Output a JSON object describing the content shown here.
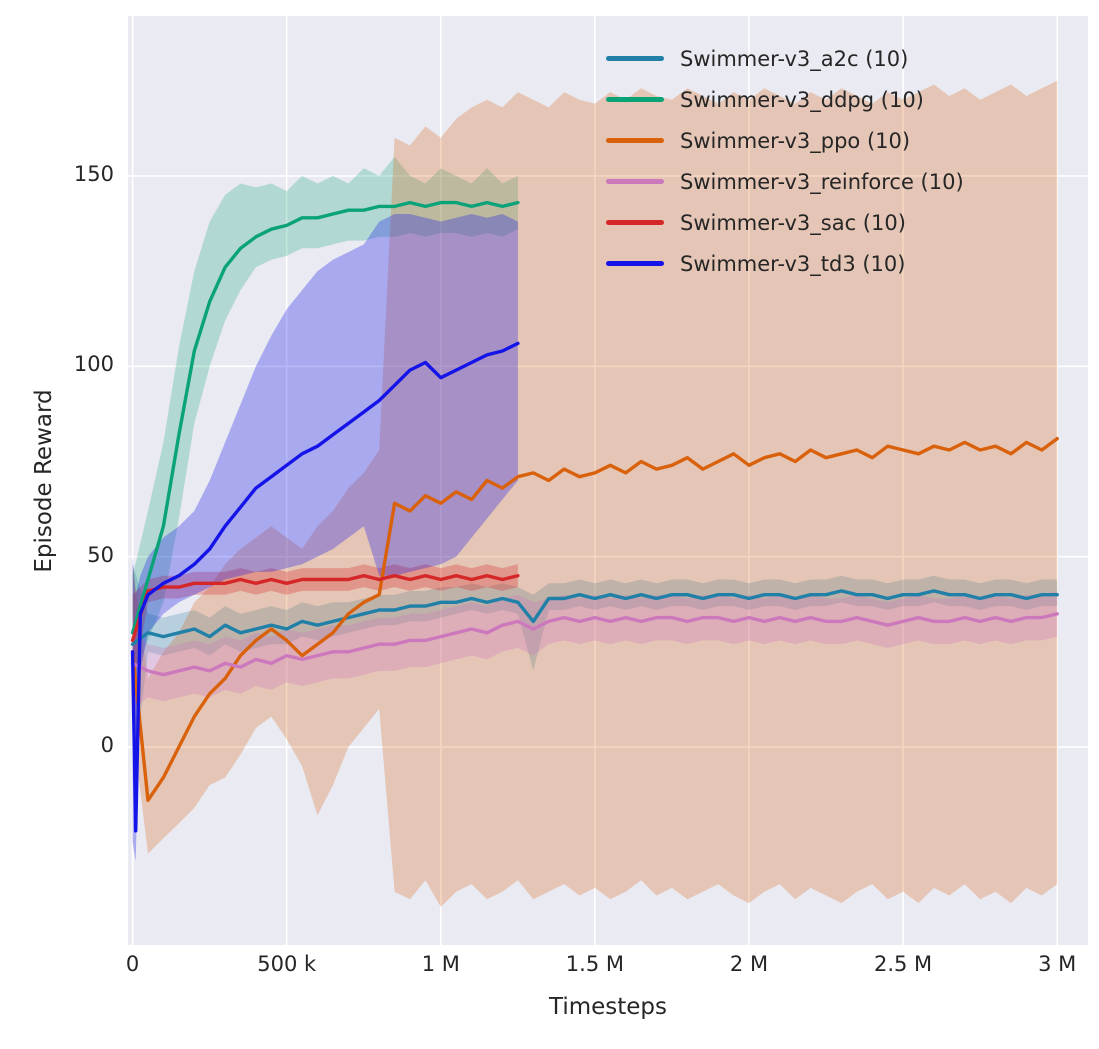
{
  "chart_data": {
    "type": "line",
    "title": "",
    "xlabel": "Timesteps",
    "ylabel": "Episode Reward",
    "x_unit": "thousand timesteps",
    "grid": true,
    "legend_position": "upper right",
    "background": "#eaeaf2",
    "grid_color": "#ffffff",
    "xlim": [
      -15,
      3100
    ],
    "ylim": [
      -52,
      192
    ],
    "x_ticks": [
      {
        "v": 0,
        "label": "0"
      },
      {
        "v": 500,
        "label": "500 k"
      },
      {
        "v": 1000,
        "label": "1 M"
      },
      {
        "v": 1500,
        "label": "1.5 M"
      },
      {
        "v": 2000,
        "label": "2 M"
      },
      {
        "v": 2500,
        "label": "2.5 M"
      },
      {
        "v": 3000,
        "label": "3 M"
      }
    ],
    "y_ticks": [
      {
        "v": 0,
        "label": "0"
      },
      {
        "v": 50,
        "label": "50"
      },
      {
        "v": 100,
        "label": "100"
      },
      {
        "v": 150,
        "label": "150"
      }
    ],
    "x_long": [
      0,
      50,
      100,
      150,
      200,
      250,
      300,
      350,
      400,
      450,
      500,
      550,
      600,
      650,
      700,
      750,
      800,
      850,
      900,
      950,
      1000,
      1050,
      1100,
      1150,
      1200,
      1250,
      1300,
      1350,
      1400,
      1450,
      1500,
      1550,
      1600,
      1650,
      1700,
      1750,
      1800,
      1850,
      1900,
      1950,
      2000,
      2050,
      2100,
      2150,
      2200,
      2250,
      2300,
      2350,
      2400,
      2450,
      2500,
      2550,
      2600,
      2650,
      2700,
      2750,
      2800,
      2850,
      2900,
      2950,
      3000
    ],
    "x_short": [
      0,
      50,
      100,
      150,
      200,
      250,
      300,
      350,
      400,
      450,
      500,
      550,
      600,
      650,
      700,
      750,
      800,
      850,
      900,
      950,
      1000,
      1050,
      1100,
      1150,
      1200,
      1250
    ],
    "series": [
      {
        "name": "Swimmer-v3_a2c (10)",
        "color": "#2080a8",
        "band_alpha": 0.25,
        "x_key": "x_long",
        "y": [
          27,
          30,
          29,
          30,
          31,
          29,
          32,
          30,
          31,
          32,
          31,
          33,
          32,
          33,
          34,
          35,
          36,
          36,
          37,
          37,
          38,
          38,
          39,
          38,
          39,
          38,
          33,
          39,
          39,
          40,
          39,
          40,
          39,
          40,
          39,
          40,
          40,
          39,
          40,
          40,
          39,
          40,
          40,
          39,
          40,
          40,
          41,
          40,
          40,
          39,
          40,
          40,
          41,
          40,
          40,
          39,
          40,
          40,
          39,
          40,
          40
        ],
        "lo": [
          -10,
          25,
          24,
          25,
          26,
          24,
          27,
          25,
          26,
          27,
          27,
          29,
          28,
          29,
          30,
          31,
          32,
          32,
          33,
          33,
          34,
          35,
          36,
          35,
          36,
          35,
          20,
          36,
          36,
          37,
          36,
          37,
          36,
          37,
          36,
          37,
          37,
          36,
          37,
          37,
          36,
          37,
          37,
          36,
          37,
          37,
          38,
          37,
          37,
          36,
          37,
          37,
          38,
          37,
          37,
          36,
          37,
          37,
          36,
          37,
          37
        ],
        "hi": [
          48,
          35,
          34,
          35,
          36,
          34,
          37,
          35,
          36,
          37,
          36,
          38,
          37,
          38,
          38,
          39,
          40,
          40,
          41,
          41,
          42,
          42,
          43,
          42,
          43,
          42,
          40,
          43,
          43,
          44,
          43,
          44,
          43,
          44,
          43,
          44,
          44,
          43,
          44,
          44,
          43,
          44,
          44,
          43,
          44,
          44,
          45,
          44,
          44,
          43,
          44,
          44,
          45,
          44,
          44,
          43,
          44,
          44,
          43,
          44,
          44
        ]
      },
      {
        "name": "Swimmer-v3_ddpg (10)",
        "color": "#0aa378",
        "band_alpha": 0.25,
        "x_key": "x_short",
        "y": [
          30,
          44,
          58,
          82,
          104,
          117,
          126,
          131,
          134,
          136,
          137,
          139,
          139,
          140,
          141,
          141,
          142,
          142,
          143,
          142,
          143,
          143,
          142,
          143,
          142,
          143
        ],
        "lo": [
          18,
          28,
          38,
          60,
          85,
          100,
          112,
          120,
          126,
          128,
          129,
          131,
          131,
          132,
          133,
          133,
          134,
          134,
          135,
          134,
          135,
          135,
          134,
          135,
          134,
          136
        ],
        "hi": [
          45,
          62,
          80,
          105,
          125,
          138,
          145,
          148,
          147,
          148,
          146,
          150,
          148,
          150,
          148,
          152,
          150,
          155,
          150,
          148,
          152,
          150,
          148,
          152,
          148,
          150
        ]
      },
      {
        "name": "Swimmer-v3_ppo (10)",
        "color": "#d9610b",
        "band_alpha": 0.26,
        "x_key": "x_long",
        "y": [
          25,
          -14,
          -8,
          0,
          8,
          14,
          18,
          24,
          28,
          31,
          28,
          24,
          27,
          30,
          35,
          38,
          40,
          64,
          62,
          66,
          64,
          67,
          65,
          70,
          68,
          71,
          72,
          70,
          73,
          71,
          72,
          74,
          72,
          75,
          73,
          74,
          76,
          73,
          75,
          77,
          74,
          76,
          77,
          75,
          78,
          76,
          77,
          78,
          76,
          79,
          78,
          77,
          79,
          78,
          80,
          78,
          79,
          77,
          80,
          78,
          81
        ],
        "lo": [
          5,
          -28,
          -24,
          -20,
          -16,
          -10,
          -8,
          -2,
          5,
          8,
          2,
          -5,
          -18,
          -10,
          0,
          5,
          10,
          -38,
          -40,
          -35,
          -42,
          -38,
          -36,
          -40,
          -38,
          -35,
          -40,
          -38,
          -36,
          -39,
          -37,
          -40,
          -38,
          -35,
          -39,
          -37,
          -40,
          -38,
          -36,
          -39,
          -41,
          -38,
          -36,
          -40,
          -37,
          -39,
          -41,
          -38,
          -36,
          -40,
          -38,
          -41,
          -37,
          -39,
          -36,
          -40,
          -38,
          -41,
          -37,
          -39,
          -36
        ],
        "hi": [
          48,
          18,
          25,
          30,
          38,
          42,
          48,
          52,
          55,
          58,
          55,
          52,
          58,
          62,
          68,
          72,
          78,
          160,
          158,
          163,
          160,
          165,
          168,
          170,
          168,
          172,
          170,
          168,
          172,
          170,
          169,
          172,
          170,
          173,
          171,
          170,
          173,
          171,
          169,
          172,
          170,
          173,
          171,
          169,
          172,
          170,
          173,
          171,
          169,
          172,
          170,
          172,
          174,
          171,
          173,
          170,
          172,
          174,
          171,
          173,
          175
        ]
      },
      {
        "name": "Swimmer-v3_reinforce (10)",
        "color": "#cc78bc",
        "band_alpha": 0.3,
        "x_key": "x_long",
        "y": [
          22,
          20,
          19,
          20,
          21,
          20,
          22,
          21,
          23,
          22,
          24,
          23,
          24,
          25,
          25,
          26,
          27,
          27,
          28,
          28,
          29,
          30,
          31,
          30,
          32,
          33,
          31,
          33,
          34,
          33,
          34,
          33,
          34,
          33,
          34,
          34,
          33,
          34,
          34,
          33,
          34,
          33,
          34,
          33,
          34,
          33,
          33,
          34,
          33,
          32,
          33,
          34,
          33,
          33,
          34,
          33,
          34,
          33,
          34,
          34,
          35
        ],
        "lo": [
          10,
          13,
          12,
          13,
          14,
          13,
          15,
          14,
          16,
          15,
          17,
          16,
          17,
          18,
          18,
          19,
          20,
          20,
          21,
          21,
          22,
          23,
          24,
          23,
          25,
          26,
          24,
          27,
          28,
          27,
          28,
          27,
          28,
          27,
          28,
          28,
          27,
          28,
          28,
          27,
          28,
          27,
          28,
          27,
          28,
          27,
          27,
          28,
          27,
          26,
          27,
          28,
          27,
          27,
          28,
          27,
          28,
          27,
          28,
          28,
          29
        ],
        "hi": [
          32,
          27,
          26,
          27,
          28,
          27,
          29,
          28,
          30,
          29,
          31,
          30,
          31,
          32,
          32,
          33,
          34,
          34,
          35,
          35,
          36,
          37,
          38,
          37,
          39,
          40,
          38,
          39,
          40,
          39,
          40,
          39,
          40,
          39,
          40,
          40,
          39,
          40,
          40,
          39,
          40,
          39,
          40,
          39,
          40,
          39,
          39,
          40,
          39,
          38,
          39,
          40,
          39,
          39,
          40,
          39,
          40,
          39,
          40,
          40,
          41
        ]
      },
      {
        "name": "Swimmer-v3_sac (10)",
        "color": "#d62728",
        "band_alpha": 0.3,
        "x_key": "x_short",
        "y": [
          28,
          41,
          42,
          42,
          43,
          43,
          43,
          44,
          43,
          44,
          43,
          44,
          44,
          44,
          44,
          45,
          44,
          45,
          44,
          45,
          44,
          45,
          44,
          45,
          44,
          45
        ],
        "lo": [
          15,
          38,
          39,
          39,
          40,
          40,
          40,
          41,
          40,
          41,
          40,
          41,
          41,
          41,
          41,
          42,
          41,
          42,
          41,
          42,
          41,
          42,
          41,
          42,
          41,
          42
        ],
        "hi": [
          40,
          44,
          45,
          45,
          46,
          46,
          46,
          47,
          46,
          47,
          46,
          47,
          47,
          47,
          47,
          48,
          47,
          48,
          47,
          48,
          47,
          48,
          47,
          48,
          47,
          48
        ]
      },
      {
        "name": "Swimmer-v3_td3 (10)",
        "color": "#1414e8",
        "band_alpha": 0.3,
        "x": [
          0,
          10,
          25,
          50,
          100,
          150,
          200,
          250,
          300,
          350,
          400,
          450,
          500,
          550,
          600,
          650,
          700,
          750,
          800,
          850,
          900,
          950,
          1000,
          1050,
          1100,
          1150,
          1200,
          1250
        ],
        "y": [
          25,
          -22,
          35,
          40,
          43,
          45,
          48,
          52,
          58,
          63,
          68,
          71,
          74,
          77,
          79,
          82,
          85,
          88,
          91,
          95,
          99,
          101,
          97,
          99,
          101,
          103,
          104,
          106
        ],
        "lo": [
          -25,
          -30,
          20,
          30,
          35,
          38,
          40,
          42,
          44,
          45,
          46,
          46,
          47,
          48,
          50,
          52,
          55,
          58,
          45,
          45,
          46,
          47,
          48,
          50,
          55,
          60,
          65,
          70
        ],
        "hi": [
          50,
          40,
          45,
          50,
          55,
          58,
          62,
          70,
          80,
          90,
          100,
          108,
          115,
          120,
          125,
          128,
          130,
          132,
          138,
          140,
          140,
          139,
          138,
          139,
          140,
          139,
          140,
          138
        ]
      }
    ]
  }
}
